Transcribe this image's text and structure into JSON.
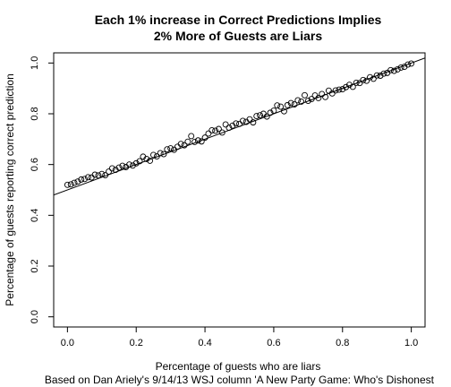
{
  "chart_data": {
    "type": "scatter",
    "title_lines": [
      "Each 1% increase in Correct Predictions Implies",
      "2% More of Guests are Liars"
    ],
    "xlabel": "Percentage of guests who are liars",
    "ylabel": "Percentage of guests reporting correct prediction",
    "caption": "Based on Dan Ariely's 9/14/13 WSJ column 'A New Party Game: Who's Dishonest",
    "xlim": [
      -0.04,
      1.04
    ],
    "ylim": [
      -0.04,
      1.04
    ],
    "x_ticks": [
      0.0,
      0.2,
      0.4,
      0.6,
      0.8,
      1.0
    ],
    "x_tick_labels": [
      "0.0",
      "0.2",
      "0.4",
      "0.6",
      "0.8",
      "1.0"
    ],
    "y_ticks": [
      0.0,
      0.2,
      0.4,
      0.6,
      0.8,
      1.0
    ],
    "y_tick_labels": [
      "0.0",
      "0.2",
      "0.4",
      "0.6",
      "0.8",
      "1.0"
    ],
    "regression_line": {
      "intercept": 0.5,
      "slope": 0.5
    },
    "series": [
      {
        "marker": "open-circle",
        "points": [
          [
            0.0,
            0.52
          ],
          [
            0.01,
            0.522
          ],
          [
            0.02,
            0.528
          ],
          [
            0.03,
            0.533
          ],
          [
            0.04,
            0.541
          ],
          [
            0.05,
            0.543
          ],
          [
            0.06,
            0.55
          ],
          [
            0.07,
            0.549
          ],
          [
            0.08,
            0.56
          ],
          [
            0.09,
            0.557
          ],
          [
            0.1,
            0.563
          ],
          [
            0.11,
            0.558
          ],
          [
            0.12,
            0.572
          ],
          [
            0.13,
            0.585
          ],
          [
            0.14,
            0.579
          ],
          [
            0.15,
            0.588
          ],
          [
            0.16,
            0.595
          ],
          [
            0.17,
            0.59
          ],
          [
            0.18,
            0.6
          ],
          [
            0.19,
            0.596
          ],
          [
            0.2,
            0.605
          ],
          [
            0.21,
            0.613
          ],
          [
            0.22,
            0.631
          ],
          [
            0.23,
            0.622
          ],
          [
            0.24,
            0.615
          ],
          [
            0.25,
            0.638
          ],
          [
            0.26,
            0.632
          ],
          [
            0.27,
            0.645
          ],
          [
            0.28,
            0.641
          ],
          [
            0.29,
            0.66
          ],
          [
            0.3,
            0.664
          ],
          [
            0.31,
            0.658
          ],
          [
            0.32,
            0.67
          ],
          [
            0.33,
            0.681
          ],
          [
            0.34,
            0.676
          ],
          [
            0.35,
            0.69
          ],
          [
            0.36,
            0.712
          ],
          [
            0.37,
            0.689
          ],
          [
            0.38,
            0.695
          ],
          [
            0.39,
            0.691
          ],
          [
            0.4,
            0.706
          ],
          [
            0.41,
            0.722
          ],
          [
            0.42,
            0.735
          ],
          [
            0.43,
            0.733
          ],
          [
            0.44,
            0.74
          ],
          [
            0.45,
            0.726
          ],
          [
            0.46,
            0.758
          ],
          [
            0.47,
            0.745
          ],
          [
            0.48,
            0.753
          ],
          [
            0.49,
            0.762
          ],
          [
            0.5,
            0.76
          ],
          [
            0.51,
            0.772
          ],
          [
            0.52,
            0.768
          ],
          [
            0.53,
            0.778
          ],
          [
            0.54,
            0.766
          ],
          [
            0.55,
            0.791
          ],
          [
            0.56,
            0.794
          ],
          [
            0.57,
            0.8
          ],
          [
            0.58,
            0.789
          ],
          [
            0.59,
            0.804
          ],
          [
            0.6,
            0.812
          ],
          [
            0.61,
            0.833
          ],
          [
            0.62,
            0.828
          ],
          [
            0.63,
            0.81
          ],
          [
            0.64,
            0.834
          ],
          [
            0.65,
            0.842
          ],
          [
            0.66,
            0.837
          ],
          [
            0.67,
            0.853
          ],
          [
            0.68,
            0.848
          ],
          [
            0.69,
            0.873
          ],
          [
            0.7,
            0.851
          ],
          [
            0.71,
            0.858
          ],
          [
            0.72,
            0.872
          ],
          [
            0.73,
            0.862
          ],
          [
            0.74,
            0.878
          ],
          [
            0.75,
            0.866
          ],
          [
            0.76,
            0.891
          ],
          [
            0.77,
            0.88
          ],
          [
            0.78,
            0.892
          ],
          [
            0.79,
            0.895
          ],
          [
            0.8,
            0.897
          ],
          [
            0.81,
            0.905
          ],
          [
            0.82,
            0.914
          ],
          [
            0.83,
            0.906
          ],
          [
            0.84,
            0.922
          ],
          [
            0.85,
            0.921
          ],
          [
            0.86,
            0.933
          ],
          [
            0.87,
            0.93
          ],
          [
            0.88,
            0.944
          ],
          [
            0.89,
            0.938
          ],
          [
            0.9,
            0.951
          ],
          [
            0.91,
            0.95
          ],
          [
            0.92,
            0.958
          ],
          [
            0.93,
            0.961
          ],
          [
            0.94,
            0.972
          ],
          [
            0.95,
            0.969
          ],
          [
            0.96,
            0.975
          ],
          [
            0.97,
            0.982
          ],
          [
            0.98,
            0.985
          ],
          [
            0.99,
            0.994
          ],
          [
            1.0,
            0.998
          ]
        ]
      }
    ]
  }
}
